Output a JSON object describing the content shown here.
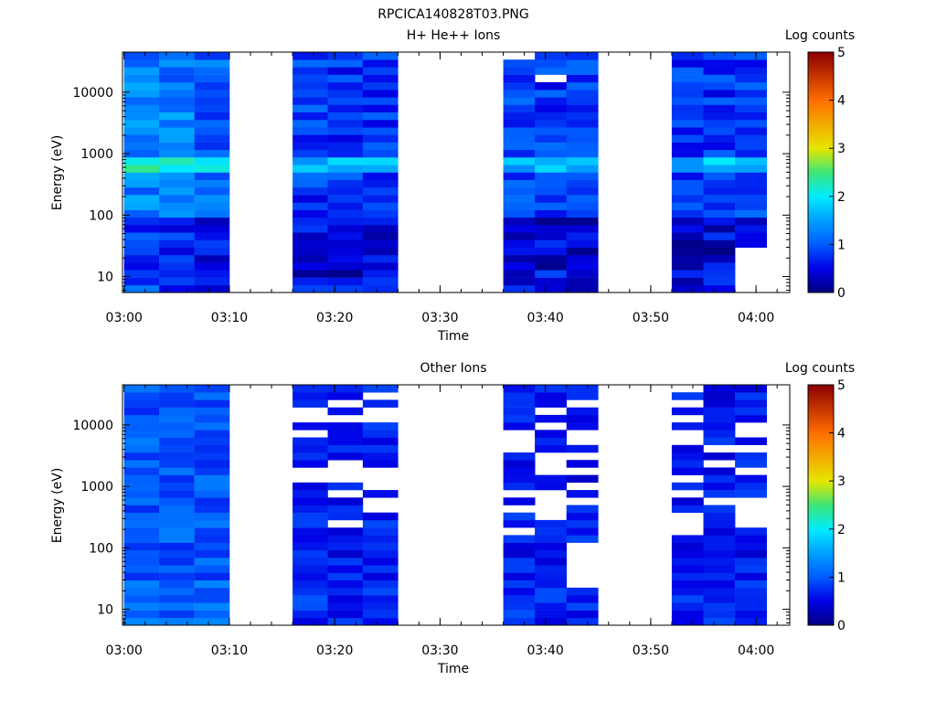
{
  "figure_title": "RPCICA140828T03.PNG",
  "chart_data": [
    {
      "type": "heatmap",
      "title": "H+ He++ Ions",
      "xlabel": "Time",
      "ylabel": "Energy (eV)",
      "x_ticks": [
        "03:00",
        "03:10",
        "03:20",
        "03:30",
        "03:40",
        "03:50",
        "04:00"
      ],
      "xlim": [
        "02:59:51",
        "04:03:12"
      ],
      "y_ticks": [
        "10",
        "100",
        "1000",
        "10000"
      ],
      "ylim": [
        5.5,
        45000
      ],
      "yscale": "log",
      "colorbar": {
        "label": "Log counts",
        "range": [
          0,
          5
        ],
        "ticks": [
          "0",
          "1",
          "2",
          "3",
          "4",
          "5"
        ]
      },
      "time_blocks": [
        {
          "start": "03:00",
          "end": "03:10"
        },
        {
          "start": "03:16",
          "end": "03:26"
        },
        {
          "start": "03:36",
          "end": "03:45"
        },
        {
          "start": "03:52",
          "end": "04:01"
        }
      ],
      "value_summary": {
        "max_log_counts": 2.3,
        "peak_energy_eV": 650
      }
    },
    {
      "type": "heatmap",
      "title": "Other Ions",
      "xlabel": "Time",
      "ylabel": "Energy (eV)",
      "x_ticks": [
        "03:00",
        "03:10",
        "03:20",
        "03:30",
        "03:40",
        "03:50",
        "04:00"
      ],
      "xlim": [
        "02:59:51",
        "04:03:12"
      ],
      "y_ticks": [
        "10",
        "100",
        "1000",
        "10000"
      ],
      "ylim": [
        5.5,
        45000
      ],
      "yscale": "log",
      "colorbar": {
        "label": "Log counts",
        "range": [
          0,
          5
        ],
        "ticks": [
          "0",
          "1",
          "2",
          "3",
          "4",
          "5"
        ]
      },
      "time_blocks": [
        {
          "start": "03:00",
          "end": "03:10"
        },
        {
          "start": "03:16",
          "end": "03:26"
        },
        {
          "start": "03:36",
          "end": "03:45"
        },
        {
          "start": "03:52",
          "end": "04:01"
        }
      ],
      "value_summary": {
        "max_log_counts": 1.3
      }
    }
  ]
}
